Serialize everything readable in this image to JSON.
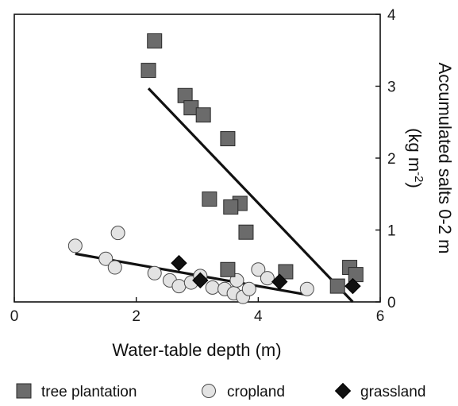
{
  "chart_data": {
    "type": "scatter",
    "title": "",
    "xlabel": "Water-table depth (m)",
    "ylabel": "Accumulated salts 0-2 m",
    "ylabel_unit_prefix": "(kg m",
    "ylabel_unit_exp": "-2",
    "ylabel_unit_suffix": ")",
    "xlim": [
      0,
      6
    ],
    "ylim": [
      0,
      4
    ],
    "xticks": [
      "0",
      "2",
      "4",
      "6"
    ],
    "yticks": [
      "0",
      "1",
      "2",
      "3",
      "4"
    ],
    "grid": false,
    "legend_position": "bottom",
    "series": [
      {
        "name": "tree plantation",
        "marker": "square",
        "color": "#6b6b6b",
        "points": [
          [
            2.3,
            3.63
          ],
          [
            2.2,
            3.22
          ],
          [
            2.8,
            2.87
          ],
          [
            2.9,
            2.7
          ],
          [
            3.1,
            2.6
          ],
          [
            3.5,
            2.27
          ],
          [
            3.2,
            1.43
          ],
          [
            3.7,
            1.37
          ],
          [
            3.55,
            1.32
          ],
          [
            3.8,
            0.97
          ],
          [
            3.5,
            0.45
          ],
          [
            4.45,
            0.42
          ],
          [
            5.5,
            0.48
          ],
          [
            5.6,
            0.38
          ],
          [
            5.3,
            0.22
          ]
        ],
        "trend": [
          [
            2.2,
            2.97
          ],
          [
            5.55,
            0.0
          ]
        ]
      },
      {
        "name": "cropland",
        "marker": "circle",
        "color": "#e3e3e3",
        "points": [
          [
            1.0,
            0.78
          ],
          [
            1.7,
            0.96
          ],
          [
            1.5,
            0.6
          ],
          [
            1.65,
            0.48
          ],
          [
            2.3,
            0.4
          ],
          [
            2.55,
            0.3
          ],
          [
            2.7,
            0.22
          ],
          [
            2.9,
            0.27
          ],
          [
            3.05,
            0.36
          ],
          [
            3.25,
            0.2
          ],
          [
            3.45,
            0.18
          ],
          [
            3.6,
            0.12
          ],
          [
            3.65,
            0.3
          ],
          [
            3.75,
            0.07
          ],
          [
            3.85,
            0.18
          ],
          [
            4.0,
            0.45
          ],
          [
            4.15,
            0.33
          ],
          [
            4.8,
            0.18
          ]
        ],
        "trend": [
          [
            1.0,
            0.67
          ],
          [
            4.8,
            0.1
          ]
        ]
      },
      {
        "name": "grassland",
        "marker": "diamond",
        "color": "#111111",
        "points": [
          [
            2.7,
            0.54
          ],
          [
            3.05,
            0.3
          ],
          [
            4.35,
            0.28
          ],
          [
            5.55,
            0.22
          ]
        ]
      }
    ]
  }
}
